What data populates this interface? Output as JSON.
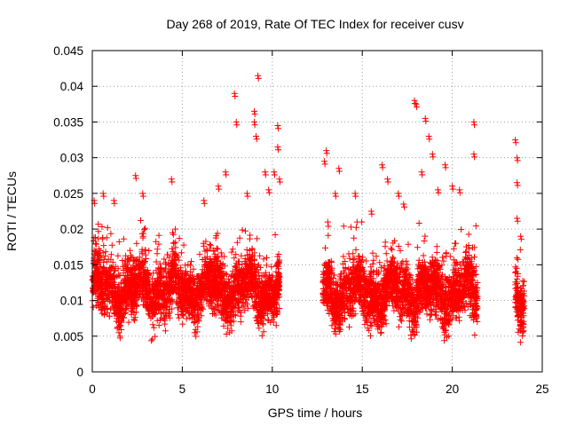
{
  "chart_data": {
    "type": "scatter",
    "title": "Day 268 of 2019, Rate Of TEC Index for receiver cusv",
    "xlabel": "GPS time / hours",
    "ylabel": "ROTI / TECUs",
    "xlim": [
      0,
      25
    ],
    "ylim": [
      0,
      0.045
    ],
    "x_ticks": [
      0,
      5,
      10,
      15,
      20,
      25
    ],
    "x_tick_labels": [
      "0",
      "5",
      "10",
      "15",
      "20",
      "25"
    ],
    "y_ticks": [
      0,
      0.005,
      0.01,
      0.015,
      0.02,
      0.025,
      0.03,
      0.035,
      0.04,
      0.045
    ],
    "y_tick_labels": [
      "0",
      "0.005",
      "0.01",
      "0.015",
      "0.02",
      "0.025",
      "0.03",
      "0.035",
      "0.04",
      "0.045"
    ],
    "grid": true,
    "marker": "+",
    "color": "#ff0000",
    "series": [
      {
        "name": "ROTI",
        "segments": [
          {
            "x_start": 0.0,
            "x_end": 10.4,
            "y_min": 0.0035,
            "y_max": 0.0215,
            "typical": 0.0115
          },
          {
            "x_start": 12.8,
            "x_end": 21.4,
            "y_min": 0.003,
            "y_max": 0.021,
            "typical": 0.011
          },
          {
            "x_start": 23.5,
            "x_end": 24.0,
            "y_min": 0.004,
            "y_max": 0.0185,
            "typical": 0.011
          }
        ],
        "notable_points": [
          [
            0.1,
            0.024
          ],
          [
            0.6,
            0.025
          ],
          [
            1.2,
            0.024
          ],
          [
            2.4,
            0.0275
          ],
          [
            2.8,
            0.025
          ],
          [
            4.4,
            0.027
          ],
          [
            6.2,
            0.024
          ],
          [
            7.0,
            0.026
          ],
          [
            7.4,
            0.028
          ],
          [
            7.9,
            0.039
          ],
          [
            8.0,
            0.035
          ],
          [
            8.6,
            0.025
          ],
          [
            9.0,
            0.0365
          ],
          [
            9.0,
            0.035
          ],
          [
            9.1,
            0.033
          ],
          [
            9.2,
            0.0415
          ],
          [
            9.6,
            0.028
          ],
          [
            9.8,
            0.0255
          ],
          [
            10.3,
            0.0345
          ],
          [
            10.3,
            0.0315
          ],
          [
            10.1,
            0.028
          ],
          [
            10.4,
            0.027
          ],
          [
            12.9,
            0.0295
          ],
          [
            13.0,
            0.031
          ],
          [
            13.5,
            0.025
          ],
          [
            13.7,
            0.0285
          ],
          [
            14.6,
            0.025
          ],
          [
            15.5,
            0.0225
          ],
          [
            16.1,
            0.029
          ],
          [
            16.4,
            0.027
          ],
          [
            17.0,
            0.025
          ],
          [
            17.3,
            0.0235
          ],
          [
            17.9,
            0.038
          ],
          [
            18.0,
            0.0375
          ],
          [
            18.3,
            0.028
          ],
          [
            18.5,
            0.0355
          ],
          [
            18.7,
            0.033
          ],
          [
            18.9,
            0.0305
          ],
          [
            19.2,
            0.0255
          ],
          [
            19.6,
            0.029
          ],
          [
            20.0,
            0.026
          ],
          [
            20.4,
            0.0255
          ],
          [
            21.2,
            0.035
          ],
          [
            21.2,
            0.0305
          ],
          [
            23.5,
            0.0325
          ],
          [
            23.6,
            0.03
          ],
          [
            23.6,
            0.0265
          ],
          [
            23.6,
            0.0215
          ],
          [
            23.8,
            0.019
          ]
        ]
      }
    ]
  }
}
